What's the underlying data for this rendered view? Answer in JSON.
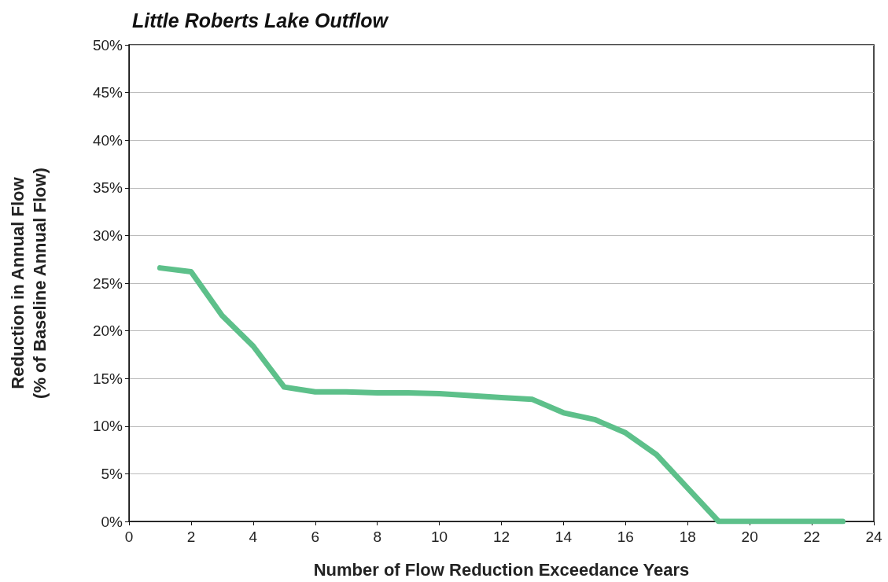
{
  "chart_data": {
    "type": "line",
    "title": "Little Roberts Lake Outflow",
    "xlabel": "Number of Flow Reduction Exceedance Years",
    "ylabel": "Reduction in Annual Flow\n(% of Baseline Annual Flow)",
    "x": [
      1,
      2,
      3,
      4,
      5,
      6,
      7,
      8,
      9,
      10,
      11,
      12,
      13,
      14,
      15,
      16,
      17,
      18,
      19,
      20,
      21,
      22,
      23
    ],
    "series": [
      {
        "color": "#5dc08a",
        "values": [
          26.6,
          26.2,
          21.6,
          18.4,
          14.1,
          13.6,
          13.6,
          13.5,
          13.5,
          13.4,
          13.2,
          13.0,
          12.8,
          11.4,
          10.7,
          9.3,
          7.0,
          3.5,
          0,
          0,
          0,
          0,
          0
        ]
      }
    ],
    "xlim": [
      0,
      24
    ],
    "xticks": [
      0,
      2,
      4,
      6,
      8,
      10,
      12,
      14,
      16,
      18,
      20,
      22,
      24
    ],
    "ylim": [
      0,
      50
    ],
    "yticks": [
      {
        "value": 0,
        "label": "0%"
      },
      {
        "value": 5,
        "label": "5%"
      },
      {
        "value": 10,
        "label": "10%"
      },
      {
        "value": 15,
        "label": "15%"
      },
      {
        "value": 20,
        "label": "20%"
      },
      {
        "value": 25,
        "label": "25%"
      },
      {
        "value": 30,
        "label": "30%"
      },
      {
        "value": 35,
        "label": "35%"
      },
      {
        "value": 40,
        "label": "40%"
      },
      {
        "value": 45,
        "label": "45%"
      },
      {
        "value": 50,
        "label": "50%"
      }
    ],
    "grid": "y",
    "marker": "none",
    "line_style": "solid"
  }
}
